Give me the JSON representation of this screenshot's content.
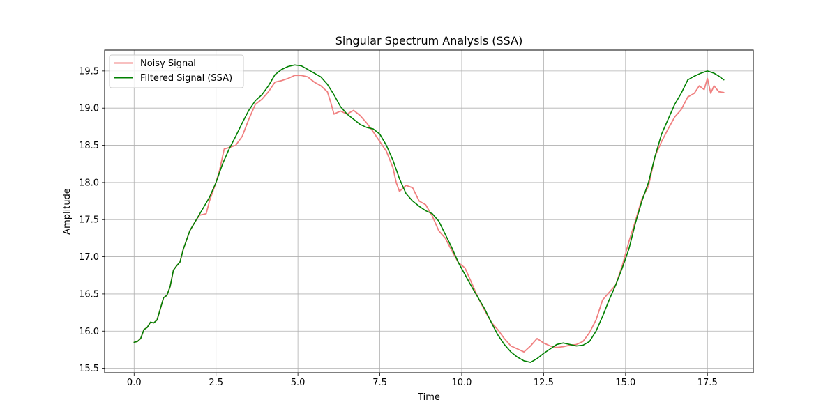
{
  "chart_data": {
    "type": "line",
    "title": "Singular Spectrum Analysis (SSA)",
    "xlabel": "Time",
    "ylabel": "Amplitude",
    "xlim": [
      -0.9,
      18.9
    ],
    "ylim": [
      15.44,
      19.78
    ],
    "xticks": [
      0,
      2.5,
      5,
      7.5,
      10,
      12.5,
      15,
      17.5
    ],
    "xtick_labels": [
      "0.0",
      "2.5",
      "5.0",
      "7.5",
      "10.0",
      "12.5",
      "15.0",
      "17.5"
    ],
    "yticks": [
      15.5,
      16,
      16.5,
      17,
      17.5,
      18,
      18.5,
      19,
      19.5
    ],
    "ytick_labels": [
      "15.5",
      "16.0",
      "16.5",
      "17.0",
      "17.5",
      "18.0",
      "18.5",
      "19.0",
      "19.5"
    ],
    "grid": true,
    "legend_position": "top-left",
    "series": [
      {
        "name": "Noisy Signal",
        "color": "#f08080",
        "points": [
          [
            0.0,
            15.85
          ],
          [
            0.1,
            15.86
          ],
          [
            0.2,
            15.9
          ],
          [
            0.3,
            16.02
          ],
          [
            0.4,
            16.05
          ],
          [
            0.5,
            16.12
          ],
          [
            0.6,
            16.11
          ],
          [
            0.7,
            16.15
          ],
          [
            0.8,
            16.3
          ],
          [
            0.9,
            16.45
          ],
          [
            1.0,
            16.48
          ],
          [
            1.1,
            16.6
          ],
          [
            1.2,
            16.82
          ],
          [
            1.3,
            16.88
          ],
          [
            1.4,
            16.93
          ],
          [
            1.5,
            17.1
          ],
          [
            1.7,
            17.35
          ],
          [
            1.9,
            17.5
          ],
          [
            2.0,
            17.56
          ],
          [
            2.2,
            17.58
          ],
          [
            2.3,
            17.75
          ],
          [
            2.5,
            18.0
          ],
          [
            2.6,
            18.15
          ],
          [
            2.75,
            18.45
          ],
          [
            2.9,
            18.47
          ],
          [
            3.1,
            18.5
          ],
          [
            3.3,
            18.62
          ],
          [
            3.5,
            18.85
          ],
          [
            3.7,
            19.05
          ],
          [
            3.9,
            19.12
          ],
          [
            4.1,
            19.22
          ],
          [
            4.3,
            19.35
          ],
          [
            4.5,
            19.37
          ],
          [
            4.7,
            19.4
          ],
          [
            4.9,
            19.44
          ],
          [
            5.1,
            19.44
          ],
          [
            5.3,
            19.42
          ],
          [
            5.5,
            19.35
          ],
          [
            5.7,
            19.3
          ],
          [
            5.9,
            19.22
          ],
          [
            6.0,
            19.08
          ],
          [
            6.1,
            18.92
          ],
          [
            6.3,
            18.96
          ],
          [
            6.5,
            18.92
          ],
          [
            6.7,
            18.97
          ],
          [
            6.9,
            18.9
          ],
          [
            7.1,
            18.8
          ],
          [
            7.3,
            18.68
          ],
          [
            7.5,
            18.55
          ],
          [
            7.7,
            18.42
          ],
          [
            7.9,
            18.2
          ],
          [
            8.0,
            18.0
          ],
          [
            8.1,
            17.88
          ],
          [
            8.3,
            17.96
          ],
          [
            8.5,
            17.93
          ],
          [
            8.7,
            17.75
          ],
          [
            8.9,
            17.7
          ],
          [
            9.1,
            17.55
          ],
          [
            9.3,
            17.35
          ],
          [
            9.5,
            17.25
          ],
          [
            9.7,
            17.08
          ],
          [
            9.9,
            16.92
          ],
          [
            10.1,
            16.85
          ],
          [
            10.3,
            16.65
          ],
          [
            10.5,
            16.45
          ],
          [
            10.7,
            16.28
          ],
          [
            10.9,
            16.12
          ],
          [
            11.1,
            16.02
          ],
          [
            11.3,
            15.9
          ],
          [
            11.5,
            15.8
          ],
          [
            11.7,
            15.76
          ],
          [
            11.9,
            15.72
          ],
          [
            12.1,
            15.8
          ],
          [
            12.3,
            15.9
          ],
          [
            12.5,
            15.84
          ],
          [
            12.7,
            15.8
          ],
          [
            12.9,
            15.78
          ],
          [
            13.1,
            15.79
          ],
          [
            13.3,
            15.81
          ],
          [
            13.5,
            15.82
          ],
          [
            13.7,
            15.86
          ],
          [
            13.9,
            15.98
          ],
          [
            14.1,
            16.15
          ],
          [
            14.3,
            16.42
          ],
          [
            14.5,
            16.52
          ],
          [
            14.7,
            16.62
          ],
          [
            14.9,
            16.88
          ],
          [
            15.1,
            17.2
          ],
          [
            15.3,
            17.48
          ],
          [
            15.5,
            17.78
          ],
          [
            15.7,
            17.95
          ],
          [
            15.9,
            18.35
          ],
          [
            16.1,
            18.55
          ],
          [
            16.3,
            18.72
          ],
          [
            16.5,
            18.88
          ],
          [
            16.7,
            18.98
          ],
          [
            16.9,
            19.15
          ],
          [
            17.1,
            19.2
          ],
          [
            17.25,
            19.3
          ],
          [
            17.4,
            19.25
          ],
          [
            17.5,
            19.4
          ],
          [
            17.6,
            19.2
          ],
          [
            17.7,
            19.3
          ],
          [
            17.85,
            19.22
          ],
          [
            18.0,
            19.21
          ]
        ]
      },
      {
        "name": "Filtered Signal (SSA)",
        "color": "#008000",
        "points": [
          [
            0.0,
            15.85
          ],
          [
            0.1,
            15.86
          ],
          [
            0.2,
            15.9
          ],
          [
            0.3,
            16.02
          ],
          [
            0.4,
            16.05
          ],
          [
            0.5,
            16.12
          ],
          [
            0.6,
            16.11
          ],
          [
            0.7,
            16.15
          ],
          [
            0.8,
            16.3
          ],
          [
            0.9,
            16.45
          ],
          [
            1.0,
            16.48
          ],
          [
            1.1,
            16.6
          ],
          [
            1.2,
            16.82
          ],
          [
            1.3,
            16.88
          ],
          [
            1.4,
            16.93
          ],
          [
            1.5,
            17.1
          ],
          [
            1.7,
            17.35
          ],
          [
            1.9,
            17.5
          ],
          [
            2.1,
            17.65
          ],
          [
            2.3,
            17.8
          ],
          [
            2.5,
            18.0
          ],
          [
            2.7,
            18.25
          ],
          [
            2.9,
            18.45
          ],
          [
            3.1,
            18.62
          ],
          [
            3.3,
            18.8
          ],
          [
            3.5,
            18.97
          ],
          [
            3.7,
            19.1
          ],
          [
            3.9,
            19.18
          ],
          [
            4.1,
            19.3
          ],
          [
            4.3,
            19.45
          ],
          [
            4.5,
            19.52
          ],
          [
            4.7,
            19.56
          ],
          [
            4.9,
            19.58
          ],
          [
            5.1,
            19.57
          ],
          [
            5.3,
            19.52
          ],
          [
            5.5,
            19.47
          ],
          [
            5.7,
            19.42
          ],
          [
            5.9,
            19.32
          ],
          [
            6.1,
            19.18
          ],
          [
            6.3,
            19.02
          ],
          [
            6.5,
            18.92
          ],
          [
            6.7,
            18.85
          ],
          [
            6.9,
            18.78
          ],
          [
            7.1,
            18.74
          ],
          [
            7.3,
            18.72
          ],
          [
            7.5,
            18.65
          ],
          [
            7.7,
            18.5
          ],
          [
            7.9,
            18.3
          ],
          [
            8.1,
            18.05
          ],
          [
            8.3,
            17.85
          ],
          [
            8.5,
            17.75
          ],
          [
            8.7,
            17.68
          ],
          [
            8.9,
            17.62
          ],
          [
            9.1,
            17.58
          ],
          [
            9.3,
            17.48
          ],
          [
            9.5,
            17.3
          ],
          [
            9.7,
            17.12
          ],
          [
            9.9,
            16.92
          ],
          [
            10.1,
            16.76
          ],
          [
            10.3,
            16.6
          ],
          [
            10.5,
            16.45
          ],
          [
            10.7,
            16.3
          ],
          [
            10.9,
            16.12
          ],
          [
            11.1,
            15.95
          ],
          [
            11.3,
            15.82
          ],
          [
            11.5,
            15.72
          ],
          [
            11.7,
            15.65
          ],
          [
            11.9,
            15.6
          ],
          [
            12.1,
            15.58
          ],
          [
            12.3,
            15.63
          ],
          [
            12.5,
            15.7
          ],
          [
            12.7,
            15.76
          ],
          [
            12.9,
            15.82
          ],
          [
            13.1,
            15.84
          ],
          [
            13.3,
            15.82
          ],
          [
            13.5,
            15.8
          ],
          [
            13.7,
            15.81
          ],
          [
            13.9,
            15.86
          ],
          [
            14.1,
            16.0
          ],
          [
            14.3,
            16.2
          ],
          [
            14.5,
            16.42
          ],
          [
            14.7,
            16.62
          ],
          [
            14.9,
            16.85
          ],
          [
            15.1,
            17.1
          ],
          [
            15.3,
            17.45
          ],
          [
            15.5,
            17.75
          ],
          [
            15.7,
            18.0
          ],
          [
            15.9,
            18.35
          ],
          [
            16.1,
            18.65
          ],
          [
            16.3,
            18.85
          ],
          [
            16.5,
            19.05
          ],
          [
            16.7,
            19.2
          ],
          [
            16.9,
            19.38
          ],
          [
            17.1,
            19.43
          ],
          [
            17.3,
            19.47
          ],
          [
            17.5,
            19.5
          ],
          [
            17.7,
            19.47
          ],
          [
            17.85,
            19.43
          ],
          [
            18.0,
            19.38
          ]
        ]
      }
    ]
  }
}
